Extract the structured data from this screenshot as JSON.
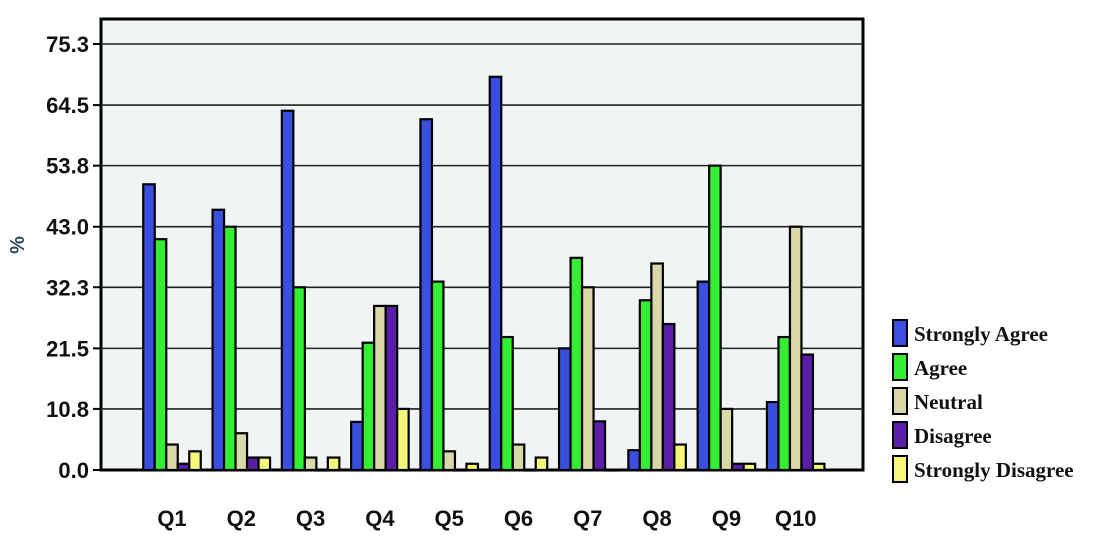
{
  "chart_data": {
    "type": "bar",
    "ylabel": "%",
    "xlabel": "",
    "title": "",
    "ylim": [
      0,
      75.3
    ],
    "yticks": [
      "0.0",
      "10.8",
      "21.5",
      "32.3",
      "43.0",
      "53.8",
      "64.5",
      "75.3"
    ],
    "grid": true,
    "legend_position": "right",
    "categories": [
      "Q1",
      "Q2",
      "Q3",
      "Q4",
      "Q5",
      "Q6",
      "Q7",
      "Q8",
      "Q9",
      "Q10"
    ],
    "series": [
      {
        "name": "Strongly Agree",
        "color": "#3a4fe0",
        "values": [
          50.5,
          46.0,
          63.5,
          8.5,
          62.0,
          69.5,
          21.5,
          3.5,
          33.3,
          12.0
        ]
      },
      {
        "name": "Agree",
        "color": "#33ee33",
        "values": [
          40.8,
          43.0,
          32.3,
          22.5,
          33.3,
          23.5,
          37.5,
          30.0,
          53.8,
          23.5
        ]
      },
      {
        "name": "Neutral",
        "color": "#d8d8a8",
        "values": [
          4.5,
          6.5,
          2.2,
          29.0,
          3.3,
          4.5,
          32.3,
          36.5,
          10.8,
          43.0
        ]
      },
      {
        "name": "Disagree",
        "color": "#5a1ea8",
        "values": [
          1.1,
          2.2,
          0.0,
          29.0,
          0.0,
          0.0,
          8.6,
          25.8,
          1.1,
          20.4
        ]
      },
      {
        "name": "Strongly Disagree",
        "color": "#f6f67a",
        "values": [
          3.3,
          2.2,
          2.2,
          10.8,
          1.1,
          2.2,
          0.0,
          4.5,
          1.1,
          1.1
        ]
      }
    ]
  }
}
